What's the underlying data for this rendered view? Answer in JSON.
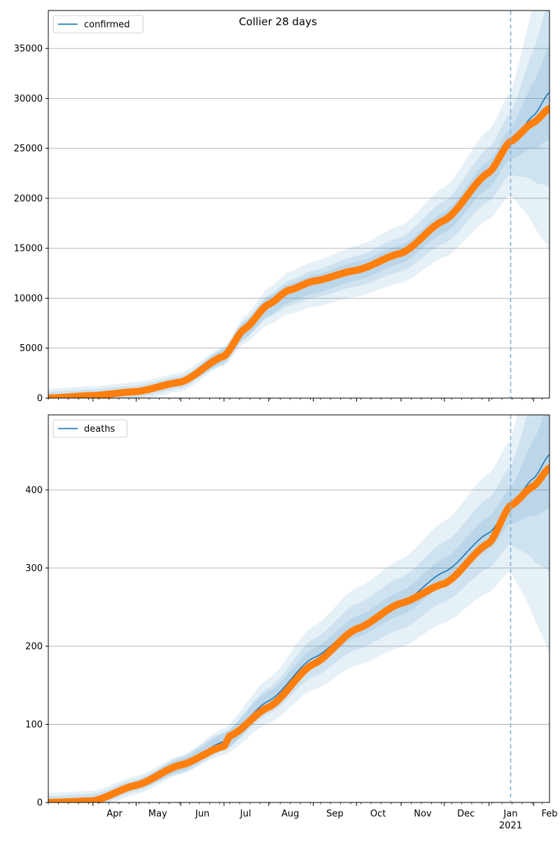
{
  "figure_title": "Collier 28 days",
  "month_labels": [
    "Apr",
    "May",
    "Jun",
    "Jul",
    "Aug",
    "Sep",
    "Oct",
    "Nov",
    "Dec",
    "Jan",
    "Feb"
  ],
  "year_label": "2021",
  "colors": {
    "model": "#1f77b4",
    "observed": "#ff7f0e",
    "band": "#1f77b4",
    "forecast_line": "#7fb2d6",
    "grid": "#b0b0b0"
  },
  "chart_data": [
    {
      "type": "line",
      "legend": "confirmed",
      "legend_loc": "upper left",
      "grid_y": true,
      "x_range": [
        "2020-03-01",
        "2021-02-12"
      ],
      "ylim": [
        0,
        38800
      ],
      "yticks": [
        0,
        5000,
        10000,
        15000,
        20000,
        25000,
        30000,
        35000
      ],
      "forecast_start": "2021-01-16",
      "model_series": [
        [
          "2020-03-01",
          0
        ],
        [
          "2020-04-01",
          250
        ],
        [
          "2020-05-01",
          650
        ],
        [
          "2020-06-01",
          1600
        ],
        [
          "2020-07-01",
          4200
        ],
        [
          "2020-07-15",
          6800
        ],
        [
          "2020-08-01",
          9200
        ],
        [
          "2020-08-15",
          10500
        ],
        [
          "2020-09-01",
          11400
        ],
        [
          "2020-10-01",
          12700
        ],
        [
          "2020-11-01",
          14400
        ],
        [
          "2020-12-01",
          17600
        ],
        [
          "2021-01-01",
          22400
        ],
        [
          "2021-01-16",
          25500
        ],
        [
          "2021-02-01",
          28300
        ],
        [
          "2021-02-12",
          30600
        ]
      ],
      "observed_series": [
        [
          "2020-03-01",
          0
        ],
        [
          "2020-04-01",
          250
        ],
        [
          "2020-05-01",
          650
        ],
        [
          "2020-06-01",
          1600
        ],
        [
          "2020-07-01",
          4200
        ],
        [
          "2020-07-15",
          6900
        ],
        [
          "2020-08-01",
          9400
        ],
        [
          "2020-08-15",
          10800
        ],
        [
          "2020-09-01",
          11700
        ],
        [
          "2020-10-01",
          12800
        ],
        [
          "2020-11-01",
          14500
        ],
        [
          "2020-12-01",
          17800
        ],
        [
          "2021-01-01",
          22600
        ],
        [
          "2021-01-16",
          25700
        ],
        [
          "2021-02-01",
          27600
        ],
        [
          "2021-02-12",
          29000
        ]
      ],
      "band_rel_widths": [
        0.06,
        0.12,
        0.2
      ]
    },
    {
      "type": "line",
      "legend": "deaths",
      "legend_loc": "upper left",
      "grid_y": true,
      "x_range": [
        "2020-03-01",
        "2021-02-12"
      ],
      "ylim": [
        0,
        496
      ],
      "yticks": [
        0,
        100,
        200,
        300,
        400
      ],
      "forecast_start": "2021-01-16",
      "model_series": [
        [
          "2020-03-01",
          0
        ],
        [
          "2020-04-01",
          3
        ],
        [
          "2020-05-01",
          22
        ],
        [
          "2020-06-01",
          48
        ],
        [
          "2020-07-01",
          78
        ],
        [
          "2020-08-01",
          130
        ],
        [
          "2020-09-01",
          185
        ],
        [
          "2020-10-01",
          225
        ],
        [
          "2020-11-01",
          255
        ],
        [
          "2020-12-01",
          295
        ],
        [
          "2021-01-01",
          345
        ],
        [
          "2021-01-16",
          380
        ],
        [
          "2021-02-01",
          415
        ],
        [
          "2021-02-12",
          445
        ]
      ],
      "observed_series": [
        [
          "2020-03-01",
          0
        ],
        [
          "2020-04-01",
          2
        ],
        [
          "2020-05-01",
          22
        ],
        [
          "2020-06-01",
          48
        ],
        [
          "2020-07-01",
          72
        ],
        [
          "2020-07-05",
          85
        ],
        [
          "2020-08-01",
          122
        ],
        [
          "2020-09-01",
          177
        ],
        [
          "2020-10-01",
          222
        ],
        [
          "2020-11-01",
          255
        ],
        [
          "2020-12-01",
          280
        ],
        [
          "2021-01-01",
          332
        ],
        [
          "2021-01-16",
          380
        ],
        [
          "2021-02-01",
          405
        ],
        [
          "2021-02-12",
          428
        ]
      ],
      "band_rel_widths": [
        0.06,
        0.13,
        0.22
      ]
    }
  ]
}
